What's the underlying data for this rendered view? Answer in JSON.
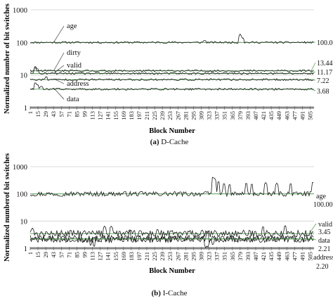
{
  "chart_data": [
    {
      "type": "line",
      "panel_label": "(a)",
      "caption": "D-Cache",
      "ylabel": "Normalized number of bit switches",
      "xlabel": "Block Number",
      "yscale": "log",
      "ylim": [
        1,
        1000
      ],
      "yticks": [
        "1",
        "10",
        "100",
        "1000"
      ],
      "xticks": [
        "1",
        "15",
        "29",
        "43",
        "57",
        "71",
        "85",
        "99",
        "113",
        "127",
        "141",
        "155",
        "169",
        "183",
        "197",
        "211",
        "225",
        "239",
        "253",
        "267",
        "281",
        "295",
        "309",
        "323",
        "337",
        "351",
        "365",
        "379",
        "393",
        "407",
        "421",
        "435",
        "449",
        "463",
        "477",
        "491",
        "505"
      ],
      "grid": "horizontal",
      "series": [
        {
          "name": "age",
          "baseline": 100,
          "label_at_block": 15,
          "spikes": [
            [
              379,
              180
            ],
            [
              384,
              140
            ],
            [
              315,
              115
            ]
          ]
        },
        {
          "name": "dirty",
          "baseline": 13.44,
          "label_at_block": 15,
          "spikes": [
            [
              10,
              17
            ]
          ]
        },
        {
          "name": "valid",
          "baseline": 11.17,
          "label_at_block": 15,
          "spikes": [
            [
              10,
              19
            ],
            [
              14,
              16
            ]
          ]
        },
        {
          "name": "address",
          "baseline": 7.22,
          "label_at_block": 15,
          "spikes": [
            [
              30,
              9
            ]
          ]
        },
        {
          "name": "data",
          "baseline": 3.68,
          "label_at_block": 15,
          "spikes": [
            [
              10,
              6
            ],
            [
              14,
              5.2
            ],
            [
              21,
              4.5
            ]
          ]
        }
      ],
      "end_labels": [
        "100.00",
        "13.44",
        "11.17",
        "7.22",
        "3.68"
      ]
    },
    {
      "type": "line",
      "panel_label": "(b)",
      "caption": "I-Cache",
      "ylabel": "Normalized  numberof bit switches",
      "xlabel": "Block Number",
      "yscale": "log",
      "ylim": [
        1,
        1000
      ],
      "yticks": [
        "1",
        "10",
        "100",
        "1000"
      ],
      "xticks": [
        "1",
        "15",
        "29",
        "43",
        "57",
        "71",
        "85",
        "99",
        "113",
        "127",
        "141",
        "155",
        "169",
        "183",
        "197",
        "211",
        "225",
        "239",
        "253",
        "267",
        "281",
        "295",
        "309",
        "323",
        "337",
        "351",
        "365",
        "379",
        "393",
        "407",
        "421",
        "435",
        "449",
        "463",
        "477",
        "491",
        "505"
      ],
      "grid": "horizontal",
      "series": [
        {
          "name": "age",
          "baseline": 100,
          "spikes": [
            [
              330,
              450
            ],
            [
              333,
              380
            ],
            [
              340,
              300
            ],
            [
              350,
              250
            ],
            [
              360,
              230
            ],
            [
              390,
              260
            ],
            [
              400,
              240
            ],
            [
              425,
              260
            ],
            [
              445,
              250
            ],
            [
              470,
              250
            ],
            [
              510,
              280
            ]
          ]
        },
        {
          "name": "valid",
          "baseline": 3.45,
          "spikes": [
            [
              5,
              5.5
            ],
            [
              135,
              6.5
            ],
            [
              147,
              6.5
            ],
            [
              230,
              5
            ],
            [
              420,
              6.5
            ],
            [
              460,
              7
            ]
          ]
        },
        {
          "name": "data",
          "baseline": 2.21,
          "spikes": [
            [
              180,
              5
            ],
            [
              320,
              4.5
            ]
          ]
        },
        {
          "name": "address",
          "baseline": 2.2,
          "spikes": [
            [
              110,
              1.2
            ],
            [
              116,
              1.1
            ],
            [
              317,
              1.05
            ],
            [
              321,
              1.1
            ],
            [
              330,
              1.3
            ]
          ]
        }
      ],
      "end_labels": [
        "age",
        "100.00",
        "valid",
        "3.45",
        "data",
        "2.21",
        "address",
        "2.20"
      ]
    }
  ],
  "colors": {
    "line": "#1a1a1a",
    "baseline": "#4f9a4f",
    "grid": "#cfcfcf",
    "axis": "#888888"
  }
}
